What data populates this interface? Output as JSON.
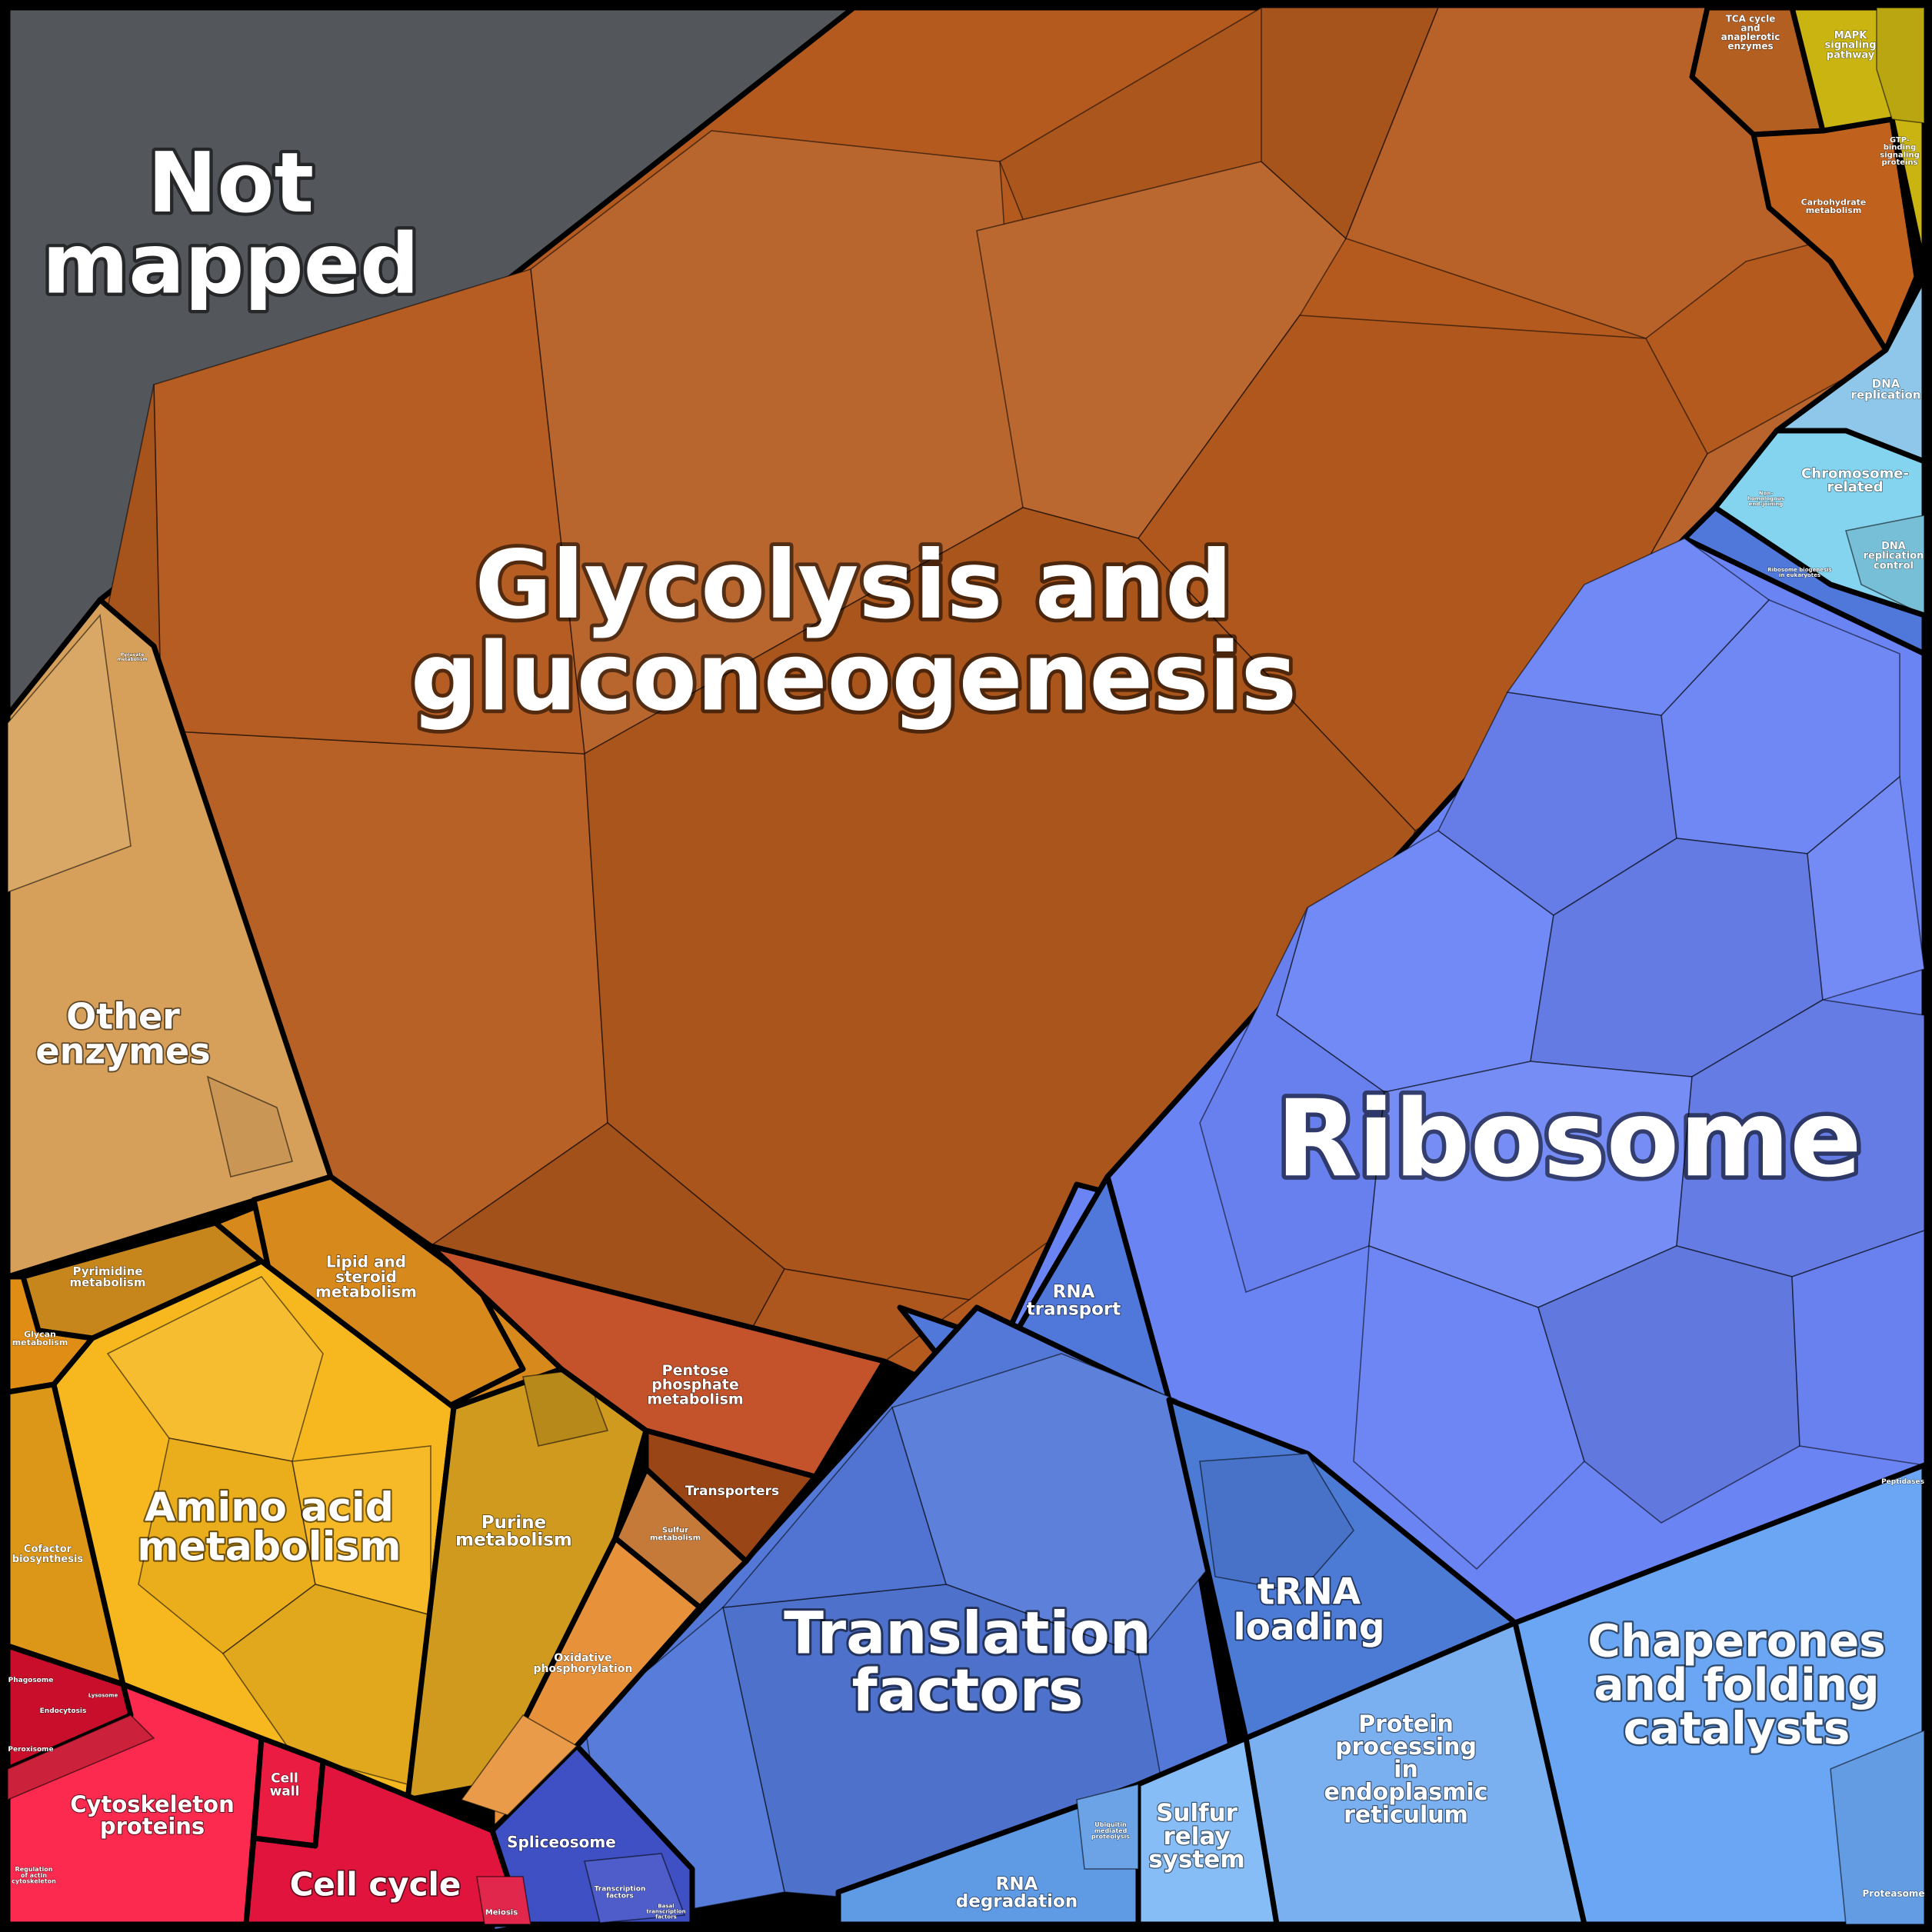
{
  "diagram": {
    "colors": {
      "background": "#000000",
      "not_mapped": "#53575c",
      "glycolysis": "#b45a1e",
      "other_enzymes": "#d6a05a",
      "amino_acid": "#f6b71f",
      "purine": "#d09a1e",
      "pyrimidine": "#c7861c",
      "lipid": "#d8891c",
      "glycan": "#e08d16",
      "cofactor": "#dc9718",
      "pentose": "#c4522a",
      "transporters": "#9a4516",
      "sulfur_metabolism": "#c67a3a",
      "oxidative": "#e7923a",
      "carbohydrate": "#c0621e",
      "tca": "#b45f22",
      "mapk": "#c9b412",
      "dna_replication": "#8ec7ea",
      "chromosome": "#84d3ef",
      "ribosome": "#6b84f4",
      "rna_transport": "#4f78da",
      "translation": "#5378d8",
      "trna": "#4c7bd6",
      "chaperones": "#6aa6f3",
      "protein_processing": "#7aaff0",
      "sulfur_relay": "#86bdf6",
      "rna_degradation": "#5f9ae4",
      "spliceosome": "#3f4fc4",
      "cytoskeleton": "#fb2a4e",
      "cell_cycle": "#e0143c",
      "cell_wall": "#ea1c42",
      "phagosome": "#c80e2a"
    },
    "labels": {
      "not_mapped": [
        "Not",
        "mapped"
      ],
      "glycolysis": [
        "Glycolysis and",
        "gluconeogenesis"
      ],
      "ribosome": [
        "Ribosome"
      ],
      "other_enzymes": [
        "Other",
        "enzymes"
      ],
      "amino_acid": [
        "Amino acid",
        "metabolism"
      ],
      "purine": [
        "Purine",
        "metabolism"
      ],
      "pyrimidine": [
        "Pyrimidine",
        "metabolism"
      ],
      "lipid": [
        "Lipid and",
        "steroid",
        "metabolism"
      ],
      "glycan": [
        "Glycan",
        "metabolism"
      ],
      "cofactor": [
        "Cofactor",
        "biosynthesis"
      ],
      "pentose": [
        "Pentose",
        "phosphate",
        "metabolism"
      ],
      "transporters": [
        "Transporters"
      ],
      "sulfur_metabolism": [
        "Sulfur",
        "metabolism"
      ],
      "oxidative": [
        "Oxidative",
        "phosphorylation"
      ],
      "rna_transport": [
        "RNA",
        "transport"
      ],
      "translation": [
        "Translation",
        "factors"
      ],
      "trna": [
        "tRNA",
        "loading"
      ],
      "chaperones": [
        "Chaperones",
        "and folding",
        "catalysts"
      ],
      "protein_processing": [
        "Protein",
        "processing",
        "in",
        "endoplasmic",
        "reticulum"
      ],
      "sulfur_relay": [
        "Sulfur",
        "relay",
        "system"
      ],
      "rna_degradation": [
        "RNA",
        "degradation"
      ],
      "spliceosome": [
        "Spliceosome"
      ],
      "transcription": [
        "Transcription",
        "factors"
      ],
      "basal": [
        "Basal",
        "transcription",
        "factors"
      ],
      "cytoskeleton": [
        "Cytoskeleton",
        "proteins"
      ],
      "cell_cycle": [
        "Cell cycle"
      ],
      "cell_wall": [
        "Cell",
        "wall"
      ],
      "meiosis": [
        "Meiosis"
      ],
      "phagosome": [
        "Phagosome"
      ],
      "endocytosis": [
        "Endocytosis"
      ],
      "lysosome": [
        "Lysosome"
      ],
      "peroxisome": [
        "Peroxisome"
      ],
      "regulation_actin": [
        "Regulation",
        "of actin",
        "cytoskeleton"
      ],
      "tca": [
        "TCA cycle",
        "and",
        "anaplerotic",
        "enzymes"
      ],
      "carbohydrate": [
        "Carbohydrate",
        "metabolism"
      ],
      "mapk": [
        "MAPK",
        "signaling",
        "pathway"
      ],
      "gtp": [
        "GTP-",
        "binding",
        "signaling",
        "proteins"
      ],
      "dna_replication": [
        "DNA",
        "replication"
      ],
      "chromosome": [
        "Chromosome-",
        "related"
      ],
      "dna_repl_control": [
        "DNA",
        "replication",
        "control"
      ],
      "non_homologous": [
        "Non-",
        "homologous",
        "end-joining"
      ],
      "ribosome_biogenesis": [
        "Ribosome biogenesis",
        "in eukaryotes"
      ],
      "proteasome": [
        "Proteasome"
      ],
      "peptidases": [
        "Peptidases"
      ],
      "ubiquitin": [
        "Ubiquitin",
        "mediated",
        "proteolysis"
      ],
      "pyruvate": [
        "Pyruvate",
        "metabolism"
      ]
    }
  }
}
